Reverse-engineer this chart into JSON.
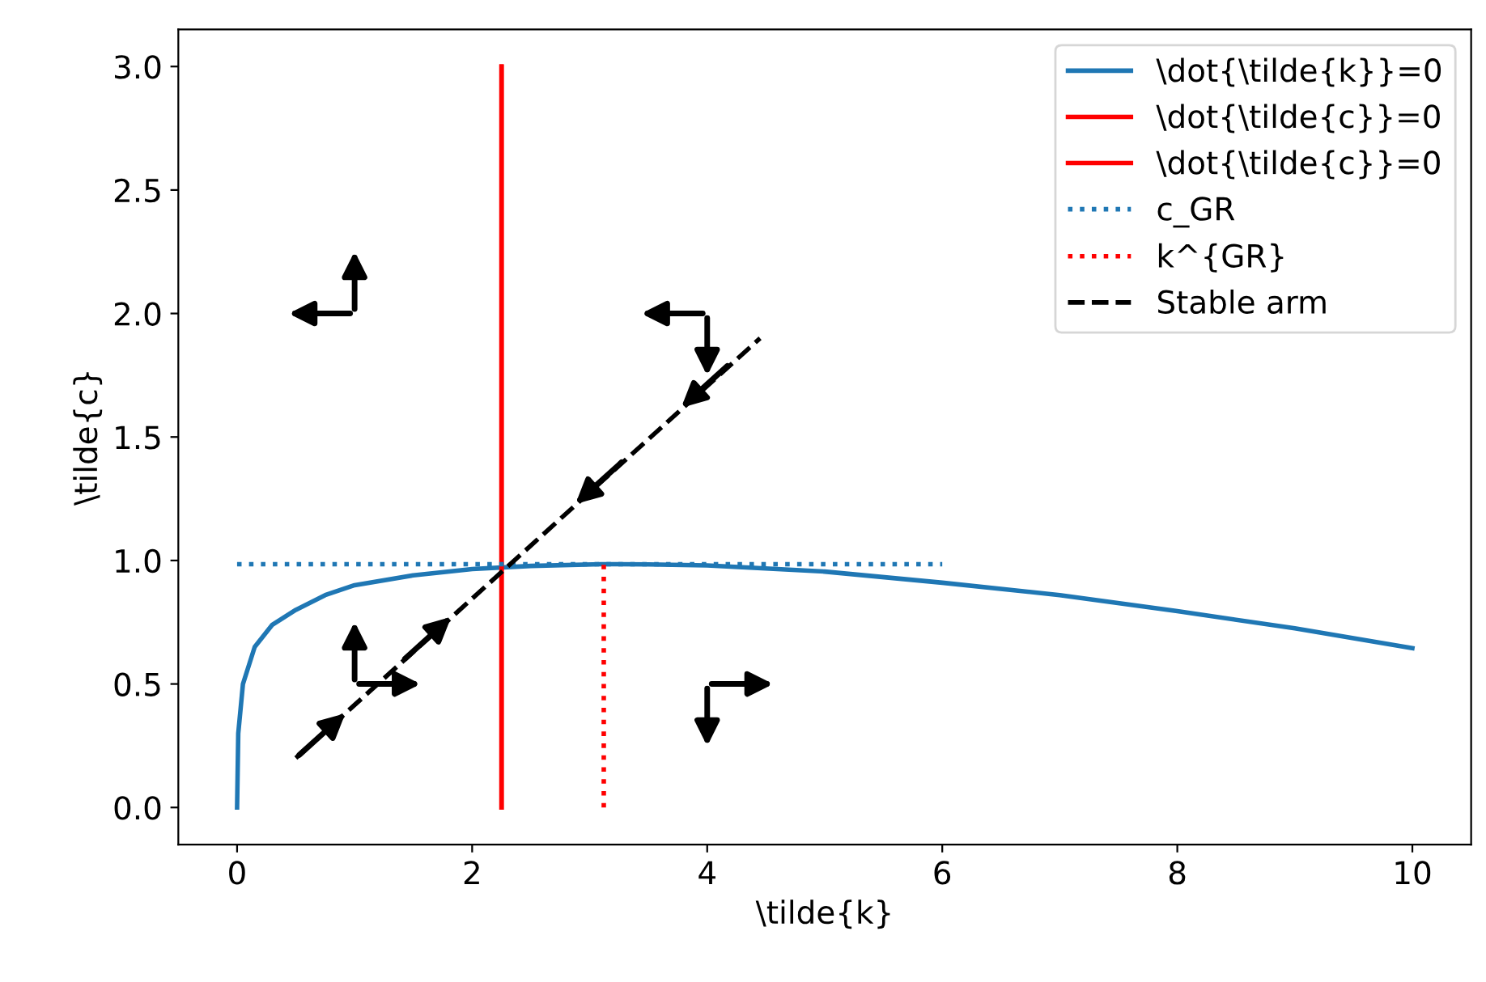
{
  "chart_data": {
    "type": "line",
    "xlabel": "\\tilde{k}",
    "ylabel": "\\tilde{c}",
    "series": [
      {
        "name": "\\dot{\\tilde{k}}=0",
        "color": "#1f77b4",
        "line_style": "solid",
        "x": [
          0,
          0.01,
          0.05,
          0.15,
          0.3,
          0.5,
          0.75,
          1,
          1.5,
          2,
          2.5,
          3.1,
          3.5,
          4,
          5,
          6,
          7,
          8,
          9,
          10
        ],
        "values": [
          0,
          0.3,
          0.5,
          0.65,
          0.74,
          0.8,
          0.86,
          0.9,
          0.94,
          0.965,
          0.978,
          0.985,
          0.984,
          0.98,
          0.955,
          0.91,
          0.86,
          0.795,
          0.725,
          0.645
        ]
      },
      {
        "name": "\\dot{\\tilde{c}}=0",
        "color": "#ff0000",
        "line_style": "solid",
        "x": [
          2.25,
          2.25
        ],
        "values": [
          0,
          3.0
        ]
      },
      {
        "name": "\\dot{\\tilde{c}}=0",
        "color": "#ff0000",
        "line_style": "solid",
        "x": [
          2.25,
          2.25
        ],
        "values": [
          0,
          3.0
        ]
      },
      {
        "name": "c_GR",
        "color": "#1f77b4",
        "line_style": "dotted",
        "x": [
          0,
          6
        ],
        "values": [
          0.985,
          0.985
        ]
      },
      {
        "name": "k^{GR}",
        "color": "#ff0000",
        "line_style": "dotted",
        "x": [
          3.12,
          3.12
        ],
        "values": [
          0,
          0.985
        ]
      },
      {
        "name": "Stable arm",
        "color": "#000000",
        "line_style": "dashed",
        "x": [
          0.5,
          4.45
        ],
        "values": [
          0.2,
          1.9
        ]
      }
    ],
    "xlim": [
      -0.5,
      10.5
    ],
    "xticks": [
      0,
      2,
      4,
      6,
      8,
      10
    ],
    "ylim": [
      -0.15,
      3.15
    ],
    "yticks": [
      {
        "value": 0,
        "label": "0.0"
      },
      {
        "value": 0.5,
        "label": "0.5"
      },
      {
        "value": 1,
        "label": "1.0"
      },
      {
        "value": 1.5,
        "label": "1.5"
      },
      {
        "value": 2,
        "label": "2.0"
      },
      {
        "value": 2.5,
        "label": "2.5"
      },
      {
        "value": 3,
        "label": "3.0"
      }
    ],
    "grid": false,
    "legend": "top right"
  }
}
